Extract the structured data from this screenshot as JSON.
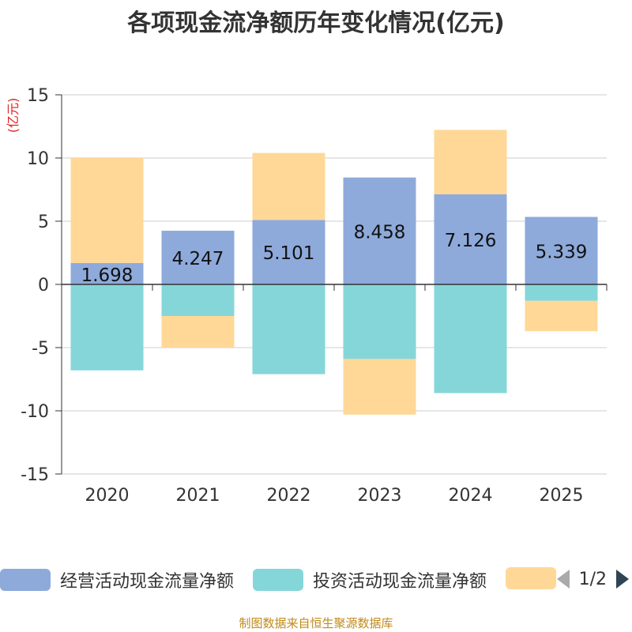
{
  "chart_data": {
    "type": "bar",
    "stacked": true,
    "title": "各项现金流净额历年变化情况(亿元)",
    "ylabel": "(亿元)",
    "ylim": [
      -15,
      15
    ],
    "yticks": [
      15,
      10,
      5,
      0,
      -5,
      -10,
      -15
    ],
    "categories": [
      "2020",
      "2021",
      "2022",
      "2023",
      "2024",
      "2025"
    ],
    "series": [
      {
        "name": "经营活动现金流量净额",
        "color": "#8eaadb",
        "labeled": true,
        "values": [
          1.698,
          4.247,
          5.101,
          8.458,
          7.126,
          5.339
        ],
        "labels": [
          "1.698",
          "4.247",
          "5.101",
          "8.458",
          "7.126",
          "5.339"
        ]
      },
      {
        "name": "投资活动现金流量净额",
        "color": "#85d6d9",
        "values": [
          -6.8,
          -2.5,
          -7.1,
          -5.9,
          -8.6,
          -1.3
        ]
      },
      {
        "name": "",
        "color": "#ffd897",
        "values": [
          8.3,
          -2.5,
          5.3,
          -4.4,
          5.1,
          -2.4
        ]
      }
    ]
  },
  "legend": {
    "items": [
      {
        "label": "经营活动现金流量净额",
        "color": "#8eaadb"
      },
      {
        "label": "投资活动现金流量净额",
        "color": "#85d6d9"
      },
      {
        "label": "",
        "color": "#ffd897"
      }
    ],
    "page": "1/2",
    "prev_icon": "triangle-left-icon",
    "next_icon": "triangle-right-icon"
  },
  "footer": "制图数据来自恒生聚源数据库"
}
